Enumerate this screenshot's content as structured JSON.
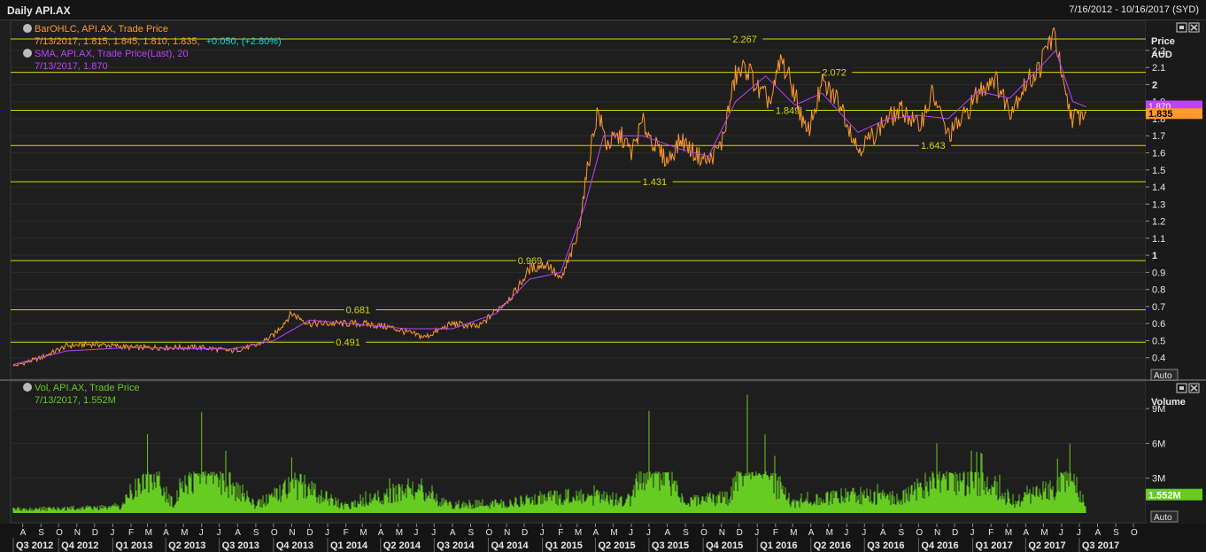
{
  "window": {
    "title": "Daily API.AX",
    "date_range": "7/16/2012 - 10/16/2017 (SYD)"
  },
  "price_panel": {
    "legend1_title": "BarOHLC, API.AX, Trade Price",
    "legend1_values": "7/13/2017, 1.815, 1.845, 1.810, 1.835,",
    "legend1_change": "+0.050, (+2.80%)",
    "legend2_title": "SMA, API.AX, Trade Price(Last), 20",
    "legend2_values": "7/13/2017, 1.870",
    "axis_title_1": "Price",
    "axis_title_2": "AUD",
    "auto_label": "Auto",
    "last_price_label": "1.835",
    "sma_label": "1.870"
  },
  "volume_panel": {
    "legend_title": "Vol, API.AX, Trade Price",
    "legend_values": "7/13/2017, 1.552M",
    "axis_title": "Volume",
    "auto_label": "Auto",
    "last_volume_label": "1.552M"
  },
  "colors": {
    "price": "#ff9a2e",
    "sma": "#c040ff",
    "volume": "#66cc22",
    "hline": "#d8d800",
    "change": "#00e0e0"
  },
  "chart_data": [
    {
      "type": "line",
      "title": "Daily API.AX",
      "ylabel": "Price AUD",
      "ylim": [
        0.3,
        2.35
      ],
      "yticks": [
        "0.4",
        "0.5",
        "0.6",
        "0.7",
        "0.8",
        "0.9",
        "1",
        "1.1",
        "1.2",
        "1.3",
        "1.4",
        "1.5",
        "1.6",
        "1.7",
        "1.8",
        "1.9",
        "2",
        "2.1",
        "2.2"
      ],
      "month_labels": [
        "A",
        "S",
        "O",
        "N",
        "D",
        "J",
        "F",
        "M",
        "A",
        "M",
        "J",
        "J",
        "A",
        "S",
        "O",
        "N",
        "D",
        "J",
        "F",
        "M",
        "A",
        "M",
        "J",
        "J",
        "A",
        "S",
        "O",
        "N",
        "D",
        "J",
        "F",
        "M",
        "A",
        "M",
        "J",
        "J",
        "A",
        "S",
        "O",
        "N",
        "D",
        "J",
        "F",
        "M",
        "A",
        "M",
        "J",
        "J",
        "A",
        "S",
        "O",
        "N",
        "D",
        "J",
        "F",
        "M",
        "A",
        "M",
        "J",
        "J",
        "A",
        "S",
        "O"
      ],
      "quarter_labels": [
        "Q3 2012",
        "Q4 2012",
        "Q1 2013",
        "Q2 2013",
        "Q3 2013",
        "Q4 2013",
        "Q1 2014",
        "Q2 2014",
        "Q3 2014",
        "Q4 2014",
        "Q1 2015",
        "Q2 2015",
        "Q3 2015",
        "Q4 2015",
        "Q1 2016",
        "Q2 2016",
        "Q3 2016",
        "Q4 2016",
        "Q1 2017",
        "Q2 2017",
        "Q3 2017"
      ],
      "horizontal_levels": [
        {
          "value": 2.267,
          "label": "2.267"
        },
        {
          "value": 2.072,
          "label": "2.072"
        },
        {
          "value": 1.849,
          "label": "1.849"
        },
        {
          "value": 1.643,
          "label": "1.643"
        },
        {
          "value": 1.431,
          "label": "1.431"
        },
        {
          "value": 0.969,
          "label": "0.969"
        },
        {
          "value": 0.681,
          "label": "0.681"
        },
        {
          "value": 0.491,
          "label": "0.491"
        }
      ],
      "series": [
        {
          "name": "BarOHLC, API.AX, Trade Price",
          "x": [
            "2012-07-16",
            "2012-09-01",
            "2012-10-15",
            "2012-12-01",
            "2013-02-01",
            "2013-04-01",
            "2013-06-01",
            "2013-07-20",
            "2013-09-01",
            "2013-10-01",
            "2013-11-01",
            "2013-12-01",
            "2014-01-15",
            "2014-03-01",
            "2014-04-15",
            "2014-05-15",
            "2014-06-15",
            "2014-08-01",
            "2014-09-15",
            "2014-10-15",
            "2014-11-15",
            "2014-12-10",
            "2015-01-10",
            "2015-02-01",
            "2015-03-01",
            "2015-03-25",
            "2015-04-05",
            "2015-04-20",
            "2015-05-15",
            "2015-06-01",
            "2015-06-20",
            "2015-07-10",
            "2015-08-01",
            "2015-08-25",
            "2015-09-15",
            "2015-10-10",
            "2015-11-01",
            "2015-11-25",
            "2015-12-15",
            "2016-01-05",
            "2016-01-25",
            "2016-02-10",
            "2016-03-05",
            "2016-03-25",
            "2016-04-20",
            "2016-05-20",
            "2016-06-20",
            "2016-07-15",
            "2016-08-10",
            "2016-09-05",
            "2016-10-01",
            "2016-10-25",
            "2016-11-20",
            "2016-12-15",
            "2017-01-10",
            "2017-02-05",
            "2017-03-05",
            "2017-04-01",
            "2017-04-25",
            "2017-05-10",
            "2017-05-22",
            "2017-06-05",
            "2017-06-20",
            "2017-07-13"
          ],
          "values": [
            0.35,
            0.4,
            0.47,
            0.48,
            0.46,
            0.46,
            0.46,
            0.44,
            0.47,
            0.53,
            0.66,
            0.6,
            0.6,
            0.6,
            0.58,
            0.55,
            0.52,
            0.6,
            0.58,
            0.68,
            0.78,
            0.92,
            0.95,
            0.85,
            1.1,
            1.65,
            1.85,
            1.65,
            1.7,
            1.6,
            1.78,
            1.65,
            1.55,
            1.68,
            1.6,
            1.55,
            1.65,
            2.05,
            2.1,
            1.95,
            1.9,
            2.15,
            1.95,
            1.7,
            2.0,
            1.9,
            1.62,
            1.7,
            1.8,
            1.85,
            1.75,
            1.95,
            1.7,
            1.8,
            1.95,
            2.05,
            1.85,
            2.0,
            2.1,
            2.25,
            2.28,
            1.95,
            1.8,
            1.835
          ]
        },
        {
          "name": "SMA, API.AX, Trade Price(Last), 20",
          "x": [
            "2012-07-16",
            "2012-10-15",
            "2013-02-01",
            "2013-07-20",
            "2013-10-01",
            "2013-12-01",
            "2014-05-15",
            "2014-08-01",
            "2014-10-15",
            "2014-12-10",
            "2015-02-01",
            "2015-03-15",
            "2015-04-15",
            "2015-06-20",
            "2015-08-25",
            "2015-10-10",
            "2015-11-25",
            "2016-01-15",
            "2016-03-05",
            "2016-04-20",
            "2016-06-20",
            "2016-08-10",
            "2016-10-01",
            "2016-11-20",
            "2017-01-10",
            "2017-03-05",
            "2017-04-25",
            "2017-05-22",
            "2017-06-20",
            "2017-07-13"
          ],
          "values": [
            0.36,
            0.44,
            0.46,
            0.45,
            0.5,
            0.62,
            0.57,
            0.57,
            0.66,
            0.86,
            0.9,
            1.3,
            1.7,
            1.7,
            1.62,
            1.58,
            1.9,
            2.05,
            1.88,
            1.95,
            1.72,
            1.8,
            1.82,
            1.8,
            1.96,
            1.92,
            2.1,
            2.2,
            1.9,
            1.87
          ]
        }
      ]
    },
    {
      "type": "bar",
      "title": "Vol, API.AX, Trade Price",
      "ylabel": "Volume",
      "ylim": [
        0,
        11000000
      ],
      "yticks": [
        "3M",
        "6M",
        "9M"
      ],
      "series": [
        {
          "name": "Vol, API.AX, Trade Price",
          "x": [
            "2012-07-16",
            "2012-10-01",
            "2013-01-15",
            "2013-03-01",
            "2013-04-15",
            "2013-06-01",
            "2013-09-01",
            "2013-11-01",
            "2014-02-01",
            "2014-05-15",
            "2014-08-01",
            "2014-11-01",
            "2015-01-15",
            "2015-03-15",
            "2015-06-01",
            "2015-07-01",
            "2015-09-01",
            "2015-11-15",
            "2015-12-15",
            "2016-03-01",
            "2016-06-15",
            "2016-09-01",
            "2016-11-01",
            "2017-01-15",
            "2017-03-15",
            "2017-05-01",
            "2017-05-25",
            "2017-06-15",
            "2017-07-13"
          ],
          "values": [
            600000,
            700000,
            900000,
            6800000,
            1500000,
            8700000,
            1200000,
            4800000,
            900000,
            3800000,
            1300000,
            1500000,
            2500000,
            2500000,
            2000000,
            8800000,
            1800000,
            2500000,
            10200000,
            1500000,
            2800000,
            2200000,
            6000000,
            5200000,
            1700000,
            3300000,
            4700000,
            6000000,
            1552000
          ]
        }
      ]
    }
  ]
}
